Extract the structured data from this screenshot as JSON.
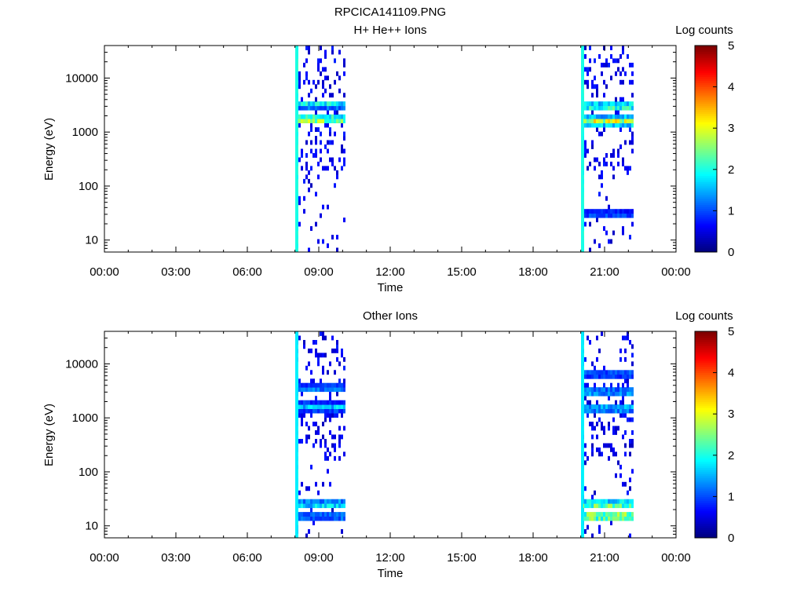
{
  "figure_title": "RPCICA141109.PNG",
  "chart_data": [
    {
      "type": "heatmap",
      "title": "H+ He++ Ions",
      "xlabel": "Time",
      "ylabel": "Energy (eV)",
      "x_ticks": [
        "00:00",
        "03:00",
        "06:00",
        "09:00",
        "12:00",
        "15:00",
        "18:00",
        "21:00",
        "00:00"
      ],
      "x_range_hours": [
        0,
        24
      ],
      "y_scale": "log",
      "y_range_ev": [
        6,
        40000
      ],
      "y_ticks": [
        {
          "value": 10,
          "label": "10"
        },
        {
          "value": 100,
          "label": "100"
        },
        {
          "value": 1000,
          "label": "1000"
        },
        {
          "value": 10000,
          "label": "10000"
        }
      ],
      "colorbar": {
        "label": "Log counts",
        "range": [
          0,
          5
        ],
        "ticks": [
          "0",
          "1",
          "2",
          "3",
          "4",
          "5"
        ]
      },
      "grid": false,
      "intervals": [
        {
          "start_h": 8.05,
          "end_h": 10.1,
          "onset_spike_level": 2.0,
          "bands": [
            {
              "energy_ev": 1700,
              "level": 2.8
            },
            {
              "energy_ev": 3300,
              "level": 1.9
            }
          ],
          "sparse_high_energy": true
        },
        {
          "start_h": 20.05,
          "end_h": 22.2,
          "onset_spike_level": 2.0,
          "bands": [
            {
              "energy_ev": 1600,
              "level": 2.9
            },
            {
              "energy_ev": 3000,
              "level": 2.4
            },
            {
              "energy_ev": 30,
              "level": 1.1
            }
          ],
          "sparse_high_energy": true
        }
      ]
    },
    {
      "type": "heatmap",
      "title": "Other Ions",
      "xlabel": "Time",
      "ylabel": "Energy (eV)",
      "x_ticks": [
        "00:00",
        "03:00",
        "06:00",
        "09:00",
        "12:00",
        "15:00",
        "18:00",
        "21:00",
        "00:00"
      ],
      "x_range_hours": [
        0,
        24
      ],
      "y_scale": "log",
      "y_range_ev": [
        6,
        40000
      ],
      "y_ticks": [
        {
          "value": 10,
          "label": "10"
        },
        {
          "value": 100,
          "label": "100"
        },
        {
          "value": 1000,
          "label": "1000"
        },
        {
          "value": 10000,
          "label": "10000"
        }
      ],
      "colorbar": {
        "label": "Log counts",
        "range": [
          0,
          5
        ],
        "ticks": [
          "0",
          "1",
          "2",
          "3",
          "4",
          "5"
        ]
      },
      "grid": false,
      "intervals": [
        {
          "start_h": 8.05,
          "end_h": 10.1,
          "onset_spike_level": 1.8,
          "bands": [
            {
              "energy_ev": 1600,
              "level": 1.6
            },
            {
              "energy_ev": 3500,
              "level": 1.3
            },
            {
              "energy_ev": 25,
              "level": 1.9
            },
            {
              "energy_ev": 15,
              "level": 1.4
            }
          ],
          "sparse_high_energy": true
        },
        {
          "start_h": 20.05,
          "end_h": 22.2,
          "onset_spike_level": 1.8,
          "bands": [
            {
              "energy_ev": 1500,
              "level": 1.7
            },
            {
              "energy_ev": 3000,
              "level": 1.6
            },
            {
              "energy_ev": 6500,
              "level": 1.2
            },
            {
              "energy_ev": 25,
              "level": 2.6
            },
            {
              "energy_ev": 15,
              "level": 3.0
            }
          ],
          "sparse_high_energy": true
        }
      ]
    }
  ]
}
